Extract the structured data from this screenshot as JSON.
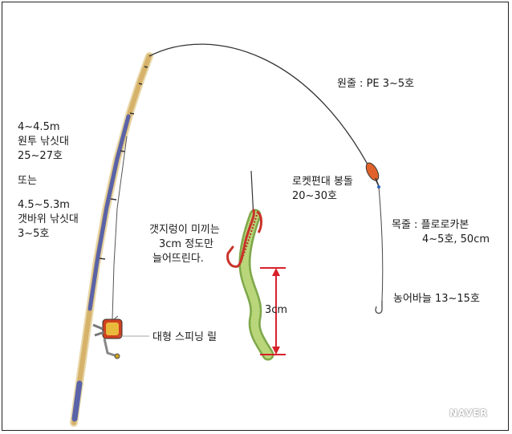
{
  "rod_labels": {
    "line1": "4~4.5m",
    "line2": "원투 낚싯대",
    "line3": "25~27호",
    "or": "또는",
    "line4": "4.5~5.3m",
    "line5": "갯바위 낚싯대",
    "line6": "3~5호"
  },
  "main_line": "원줄 : PE 3~5호",
  "sinker": {
    "line1": "로켓편대 봉돌",
    "line2": "20~30호"
  },
  "leader": {
    "line1": "목줄 : 플로로카본",
    "line2": "4~5호, 50cm"
  },
  "hook": "농어바늘 13~15호",
  "worm_note": {
    "line1": "갯지렁이 미끼는",
    "line2": "3cm 정도만",
    "line3": "늘어뜨린다."
  },
  "measure": "3cm",
  "reel": "대형 스피닝 릴",
  "watermark": "NAVER",
  "colors": {
    "rod_blue": "#5a63a8",
    "rod_tan": "#d6b26a",
    "worm": "#9cc25a",
    "measure_red": "#d8202a",
    "hook_red": "#c9322a",
    "line": "#333333"
  }
}
